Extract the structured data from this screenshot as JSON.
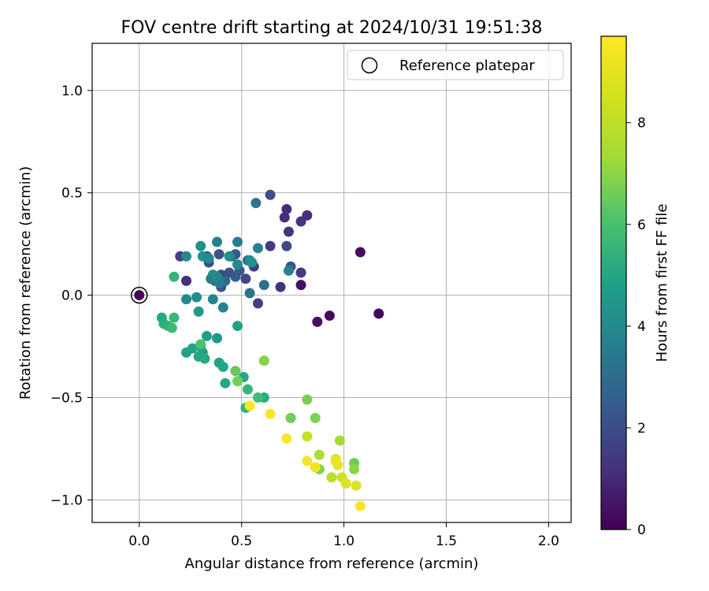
{
  "chart_data": {
    "type": "scatter",
    "title": "FOV centre drift starting at 2024/10/31 19:51:38",
    "xlabel": "Angular distance from reference (arcmin)",
    "ylabel": "Rotation from reference (arcmin)",
    "xlim": [
      -0.23,
      2.11
    ],
    "ylim": [
      -1.11,
      1.23
    ],
    "xticks": [
      0.0,
      0.5,
      1.0,
      1.5,
      2.0
    ],
    "xtick_labels": [
      "0.0",
      "0.5",
      "1.0",
      "1.5",
      "2.0"
    ],
    "yticks": [
      -1.0,
      -0.5,
      0.0,
      0.5,
      1.0
    ],
    "ytick_labels": [
      "−1.0",
      "−0.5",
      "0.0",
      "0.5",
      "1.0"
    ],
    "grid": true,
    "legend": {
      "position": "top-right",
      "entries": [
        "Reference platepar"
      ]
    },
    "reference_point": {
      "x": 0.0,
      "y": 0.0,
      "c": 0.0
    },
    "colorbar": {
      "label": "Hours from first FF file",
      "range": [
        0,
        9.7
      ],
      "ticks": [
        0,
        2,
        4,
        6,
        8
      ],
      "tick_labels": [
        "0",
        "2",
        "4",
        "6",
        "8"
      ],
      "colormap": "viridis"
    },
    "points": [
      {
        "x": 1.08,
        "y": 0.21,
        "c": 0.3
      },
      {
        "x": 1.17,
        "y": -0.09,
        "c": 0.2
      },
      {
        "x": 0.93,
        "y": -0.1,
        "c": 0.3
      },
      {
        "x": 0.87,
        "y": -0.13,
        "c": 0.4
      },
      {
        "x": 0.79,
        "y": 0.05,
        "c": 0.4
      },
      {
        "x": 0.72,
        "y": 0.42,
        "c": 1.2
      },
      {
        "x": 0.82,
        "y": 0.39,
        "c": 1.3
      },
      {
        "x": 0.71,
        "y": 0.38,
        "c": 1.2
      },
      {
        "x": 0.79,
        "y": 0.36,
        "c": 1.5
      },
      {
        "x": 0.73,
        "y": 0.31,
        "c": 1.5
      },
      {
        "x": 0.79,
        "y": 0.11,
        "c": 1.6
      },
      {
        "x": 0.69,
        "y": 0.04,
        "c": 1.4
      },
      {
        "x": 0.64,
        "y": 0.49,
        "c": 2.3
      },
      {
        "x": 0.64,
        "y": 0.24,
        "c": 1.7
      },
      {
        "x": 0.72,
        "y": 0.24,
        "c": 2.0
      },
      {
        "x": 0.74,
        "y": 0.14,
        "c": 2.5
      },
      {
        "x": 0.56,
        "y": 0.14,
        "c": 1.7
      },
      {
        "x": 0.58,
        "y": -0.04,
        "c": 1.8
      },
      {
        "x": 0.52,
        "y": 0.08,
        "c": 2.0
      },
      {
        "x": 0.23,
        "y": 0.07,
        "c": 1.3
      },
      {
        "x": 0.2,
        "y": 0.19,
        "c": 1.8
      },
      {
        "x": 0.33,
        "y": 0.19,
        "c": 2.1
      },
      {
        "x": 0.34,
        "y": 0.16,
        "c": 2.2
      },
      {
        "x": 0.39,
        "y": 0.2,
        "c": 2.4
      },
      {
        "x": 0.45,
        "y": 0.19,
        "c": 2.6
      },
      {
        "x": 0.47,
        "y": 0.2,
        "c": 2.8
      },
      {
        "x": 0.4,
        "y": 0.1,
        "c": 2.2
      },
      {
        "x": 0.44,
        "y": 0.11,
        "c": 2.4
      },
      {
        "x": 0.4,
        "y": 0.04,
        "c": 2.6
      },
      {
        "x": 0.37,
        "y": 0.07,
        "c": 2.7
      },
      {
        "x": 0.47,
        "y": 0.09,
        "c": 2.7
      },
      {
        "x": 0.49,
        "y": 0.12,
        "c": 2.5
      },
      {
        "x": 0.53,
        "y": 0.17,
        "c": 3.0
      },
      {
        "x": 0.57,
        "y": 0.45,
        "c": 3.7
      },
      {
        "x": 0.61,
        "y": 0.05,
        "c": 3.6
      },
      {
        "x": 0.54,
        "y": 0.01,
        "c": 3.7
      },
      {
        "x": 0.42,
        "y": 0.07,
        "c": 3.4
      },
      {
        "x": 0.48,
        "y": 0.26,
        "c": 4.1
      },
      {
        "x": 0.58,
        "y": 0.23,
        "c": 4.2
      },
      {
        "x": 0.38,
        "y": 0.26,
        "c": 4.2
      },
      {
        "x": 0.35,
        "y": 0.08,
        "c": 3.9
      },
      {
        "x": 0.39,
        "y": 0.06,
        "c": 4.0
      },
      {
        "x": 0.23,
        "y": 0.19,
        "c": 4.6
      },
      {
        "x": 0.3,
        "y": 0.24,
        "c": 4.8
      },
      {
        "x": 0.31,
        "y": 0.19,
        "c": 4.9
      },
      {
        "x": 0.34,
        "y": 0.18,
        "c": 4.6
      },
      {
        "x": 0.44,
        "y": 0.19,
        "c": 4.8
      },
      {
        "x": 0.54,
        "y": 0.17,
        "c": 4.7
      },
      {
        "x": 0.55,
        "y": 0.16,
        "c": 4.9
      },
      {
        "x": 0.48,
        "y": 0.15,
        "c": 4.5
      },
      {
        "x": 0.73,
        "y": 0.12,
        "c": 4.3
      },
      {
        "x": 0.38,
        "y": 0.09,
        "c": 4.4
      },
      {
        "x": 0.36,
        "y": 0.1,
        "c": 4.5
      },
      {
        "x": 0.41,
        "y": -0.06,
        "c": 4.3
      },
      {
        "x": 0.36,
        "y": -0.02,
        "c": 4.4
      },
      {
        "x": 0.23,
        "y": -0.02,
        "c": 4.6
      },
      {
        "x": 0.28,
        "y": -0.01,
        "c": 4.7
      },
      {
        "x": 0.29,
        "y": -0.08,
        "c": 5.2
      },
      {
        "x": 0.33,
        "y": -0.2,
        "c": 5.4
      },
      {
        "x": 0.38,
        "y": -0.21,
        "c": 5.2
      },
      {
        "x": 0.48,
        "y": -0.15,
        "c": 5.5
      },
      {
        "x": 0.23,
        "y": -0.28,
        "c": 5.5
      },
      {
        "x": 0.26,
        "y": -0.26,
        "c": 5.6
      },
      {
        "x": 0.3,
        "y": -0.25,
        "c": 5.4
      },
      {
        "x": 0.31,
        "y": -0.28,
        "c": 5.6
      },
      {
        "x": 0.29,
        "y": -0.3,
        "c": 5.8
      },
      {
        "x": 0.32,
        "y": -0.31,
        "c": 5.9
      },
      {
        "x": 0.39,
        "y": -0.33,
        "c": 5.6
      },
      {
        "x": 0.41,
        "y": -0.35,
        "c": 5.8
      },
      {
        "x": 0.51,
        "y": -0.4,
        "c": 5.9
      },
      {
        "x": 0.42,
        "y": -0.43,
        "c": 5.9
      },
      {
        "x": 0.53,
        "y": -0.46,
        "c": 6.4
      },
      {
        "x": 0.61,
        "y": -0.5,
        "c": 6.0
      },
      {
        "x": 0.58,
        "y": -0.5,
        "c": 6.7
      },
      {
        "x": 0.52,
        "y": -0.55,
        "c": 6.3
      },
      {
        "x": 0.11,
        "y": -0.11,
        "c": 5.8
      },
      {
        "x": 0.12,
        "y": -0.14,
        "c": 6.1
      },
      {
        "x": 0.14,
        "y": -0.15,
        "c": 6.2
      },
      {
        "x": 0.16,
        "y": -0.16,
        "c": 6.6
      },
      {
        "x": 0.17,
        "y": -0.11,
        "c": 6.5
      },
      {
        "x": 0.17,
        "y": 0.09,
        "c": 6.3
      },
      {
        "x": 0.3,
        "y": -0.24,
        "c": 6.9
      },
      {
        "x": 0.47,
        "y": -0.37,
        "c": 7.4
      },
      {
        "x": 0.48,
        "y": -0.42,
        "c": 7.6
      },
      {
        "x": 0.61,
        "y": -0.32,
        "c": 7.9
      },
      {
        "x": 0.74,
        "y": -0.6,
        "c": 7.6
      },
      {
        "x": 0.86,
        "y": -0.6,
        "c": 7.8
      },
      {
        "x": 0.82,
        "y": -0.51,
        "c": 7.7
      },
      {
        "x": 0.88,
        "y": -0.85,
        "c": 7.9
      },
      {
        "x": 1.05,
        "y": -0.82,
        "c": 7.5
      },
      {
        "x": 1.05,
        "y": -0.85,
        "c": 8.0
      },
      {
        "x": 0.98,
        "y": -0.71,
        "c": 8.4
      },
      {
        "x": 0.88,
        "y": -0.78,
        "c": 8.5
      },
      {
        "x": 0.82,
        "y": -0.69,
        "c": 8.9
      },
      {
        "x": 0.94,
        "y": -0.89,
        "c": 8.7
      },
      {
        "x": 0.99,
        "y": -0.89,
        "c": 9.0
      },
      {
        "x": 0.96,
        "y": -0.8,
        "c": 9.1
      },
      {
        "x": 0.97,
        "y": -0.83,
        "c": 9.3
      },
      {
        "x": 0.96,
        "y": -0.81,
        "c": 9.4
      },
      {
        "x": 1.06,
        "y": -0.93,
        "c": 9.2
      },
      {
        "x": 1.01,
        "y": -0.92,
        "c": 9.2
      },
      {
        "x": 0.86,
        "y": -0.84,
        "c": 9.5
      },
      {
        "x": 0.82,
        "y": -0.81,
        "c": 9.6
      },
      {
        "x": 0.72,
        "y": -0.7,
        "c": 9.7
      },
      {
        "x": 0.64,
        "y": -0.58,
        "c": 9.6
      },
      {
        "x": 0.54,
        "y": -0.54,
        "c": 9.7
      },
      {
        "x": 1.08,
        "y": -1.03,
        "c": 9.6
      }
    ]
  }
}
